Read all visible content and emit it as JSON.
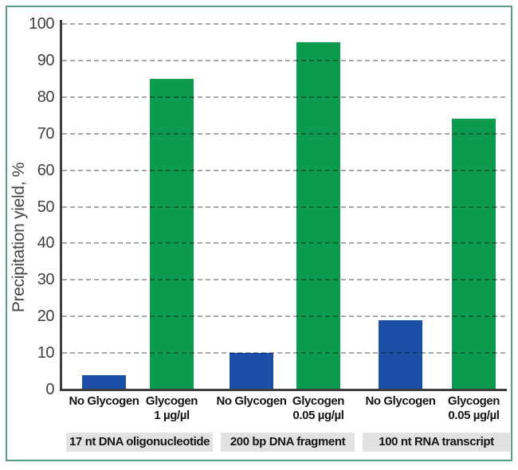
{
  "colors": {
    "bar_blue": "#1c4fa8",
    "bar_green": "#0c9b4e",
    "frame_border_green": "#5b9c7d",
    "grid_gray": "#a6a6a6",
    "axis_dark": "#3d3d3d",
    "tick_text": "#3f3f3f",
    "label_text": "#141414",
    "group_strip_bg": "#e2e2e2",
    "plot_background": "#ffffff"
  },
  "chart_data": {
    "type": "bar",
    "title": "",
    "xlabel": "",
    "ylabel": "Precipitation yield, %",
    "ylim": [
      0,
      100
    ],
    "yticks": [
      0,
      10,
      20,
      30,
      40,
      50,
      60,
      70,
      80,
      90,
      100
    ],
    "grid": "horizontal-dashed",
    "legend": "none",
    "bars": [
      {
        "label": "No Glycogen",
        "sublabel": "",
        "value": 4,
        "color": "blue",
        "group": "17 nt DNA oligonucleotide"
      },
      {
        "label": "Glycogen",
        "sublabel": "1 µg/µl",
        "value": 85,
        "color": "green",
        "group": "17 nt DNA oligonucleotide"
      },
      {
        "label": "No Glycogen",
        "sublabel": "",
        "value": 10,
        "color": "blue",
        "group": "200 bp DNA fragment"
      },
      {
        "label": "Glycogen",
        "sublabel": "0.05 µg/µl",
        "value": 95,
        "color": "green",
        "group": "200 bp DNA fragment"
      },
      {
        "label": "No Glycogen",
        "sublabel": "",
        "value": 19,
        "color": "blue",
        "group": "100 nt RNA transcript"
      },
      {
        "label": "Glycogen",
        "sublabel": "0.05 µg/µl",
        "value": 74,
        "color": "green",
        "group": "100 nt RNA transcript"
      }
    ],
    "groups": [
      "17 nt DNA oligonucleotide",
      "200 bp DNA fragment",
      "100 nt RNA transcript"
    ]
  }
}
